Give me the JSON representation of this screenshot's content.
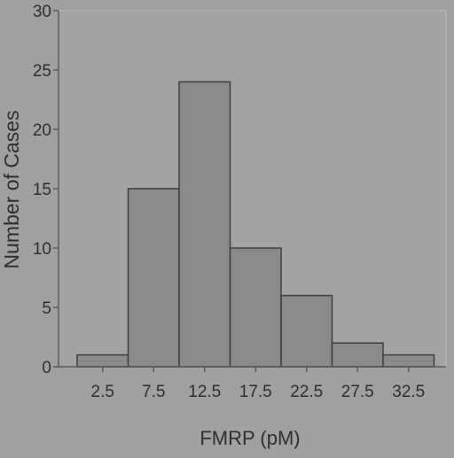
{
  "chart_data": {
    "type": "bar",
    "title": "",
    "xlabel": "FMRP (pM)",
    "ylabel": "Number of Cases",
    "categories": [
      "2.5",
      "7.5",
      "12.5",
      "17.5",
      "22.5",
      "27.5",
      "32.5"
    ],
    "values": [
      1,
      15,
      24,
      10,
      6,
      2,
      1
    ],
    "ylim": [
      0,
      30
    ],
    "yticks": [
      "0",
      "5",
      "10",
      "15",
      "20",
      "25",
      "30"
    ],
    "grid": false,
    "legend": "none",
    "colors": {
      "background": "#a0a0a0",
      "plot_area": "#a3a3a3",
      "bar_fill": "#8a8a8a",
      "bar_stroke": "#3e3e3e",
      "axis": "#5a5a5a",
      "text": "#2e2e2e"
    }
  }
}
